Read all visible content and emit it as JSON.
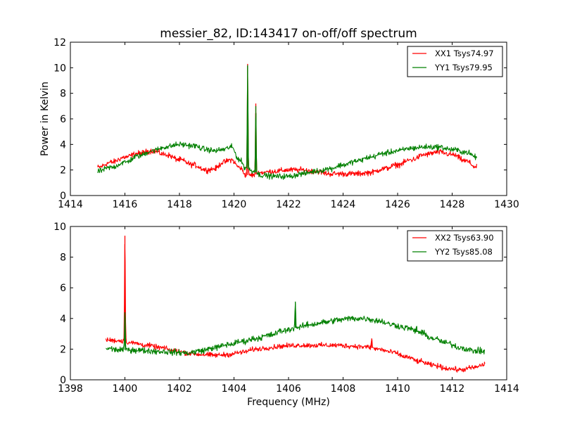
{
  "figure": {
    "title": "messier_82, ID:143417 on-off/off spectrum"
  },
  "colors": {
    "xx": "#ff0000",
    "yy": "#008000",
    "axes": "#000000",
    "background": "#ffffff"
  },
  "chart_data": [
    {
      "type": "line",
      "title": "messier_82, ID:143417 on-off/off spectrum",
      "xlabel": "",
      "ylabel": "Power in Kelvin",
      "xlim": [
        1414,
        1430
      ],
      "ylim": [
        0,
        12
      ],
      "xticks": [
        "1414",
        "1416",
        "1418",
        "1420",
        "1422",
        "1424",
        "1426",
        "1428",
        "1430"
      ],
      "yticks": [
        "0",
        "2",
        "4",
        "6",
        "8",
        "10",
        "12"
      ],
      "grid": false,
      "legend_position": "top-right",
      "x_range": [
        1415.0,
        1428.9
      ],
      "series": [
        {
          "name": "XX1 Tsys74.97",
          "color": "#ff0000",
          "x": [
            1415.0,
            1415.5,
            1416.0,
            1416.5,
            1417.0,
            1417.5,
            1418.0,
            1418.5,
            1419.0,
            1419.3,
            1419.6,
            1419.9,
            1420.2,
            1420.45,
            1420.7,
            1421.0,
            1421.5,
            1422.0,
            1422.5,
            1423.0,
            1423.5,
            1424.0,
            1424.5,
            1425.0,
            1425.5,
            1426.0,
            1426.5,
            1427.0,
            1427.5,
            1428.0,
            1428.5,
            1428.9
          ],
          "y": [
            2.2,
            2.6,
            3.0,
            3.3,
            3.5,
            3.2,
            2.8,
            2.4,
            2.0,
            2.1,
            2.6,
            2.8,
            2.2,
            1.6,
            1.6,
            1.8,
            1.9,
            2.0,
            2.0,
            1.9,
            1.7,
            1.7,
            1.7,
            1.8,
            2.1,
            2.4,
            2.8,
            3.2,
            3.4,
            3.2,
            2.7,
            2.2
          ],
          "noise": 0.12,
          "peaks": [
            {
              "x": 1420.5,
              "y": 10.3
            },
            {
              "x": 1420.8,
              "y": 7.2
            }
          ]
        },
        {
          "name": "YY1 Tsys79.95",
          "color": "#008000",
          "x": [
            1415.0,
            1415.5,
            1416.0,
            1416.5,
            1417.0,
            1417.5,
            1418.0,
            1418.5,
            1419.0,
            1419.3,
            1419.6,
            1419.9,
            1420.2,
            1420.45,
            1420.7,
            1421.0,
            1421.5,
            1422.0,
            1422.5,
            1423.0,
            1423.5,
            1424.0,
            1424.5,
            1425.0,
            1425.5,
            1426.0,
            1426.5,
            1427.0,
            1427.5,
            1428.0,
            1428.5,
            1428.9
          ],
          "y": [
            1.9,
            2.2,
            2.6,
            3.1,
            3.5,
            3.8,
            4.0,
            3.9,
            3.6,
            3.5,
            3.6,
            3.8,
            2.8,
            2.1,
            1.9,
            1.6,
            1.5,
            1.5,
            1.7,
            1.9,
            2.1,
            2.4,
            2.7,
            3.0,
            3.3,
            3.5,
            3.7,
            3.8,
            3.8,
            3.6,
            3.4,
            3.0
          ],
          "noise": 0.12,
          "peaks": [
            {
              "x": 1420.5,
              "y": 10.2
            },
            {
              "x": 1420.8,
              "y": 7.0
            }
          ]
        }
      ]
    },
    {
      "type": "line",
      "title": "",
      "xlabel": "Frequency (MHz)",
      "ylabel": "",
      "xlim": [
        1398,
        1414
      ],
      "ylim": [
        0,
        10
      ],
      "xticks": [
        "1398",
        "1400",
        "1402",
        "1404",
        "1406",
        "1408",
        "1410",
        "1412",
        "1414"
      ],
      "yticks": [
        "0",
        "2",
        "4",
        "6",
        "8",
        "10"
      ],
      "grid": false,
      "legend_position": "top-right",
      "x_range": [
        1399.3,
        1413.2
      ],
      "series": [
        {
          "name": "XX2 Tsys63.90",
          "color": "#ff0000",
          "x": [
            1399.3,
            1399.8,
            1400.3,
            1400.8,
            1401.3,
            1401.8,
            1402.3,
            1402.8,
            1403.3,
            1403.8,
            1404.3,
            1404.8,
            1405.3,
            1405.8,
            1406.3,
            1406.8,
            1407.3,
            1407.8,
            1408.3,
            1408.8,
            1409.3,
            1409.8,
            1410.3,
            1410.8,
            1411.3,
            1411.8,
            1412.3,
            1412.8,
            1413.2
          ],
          "y": [
            2.6,
            2.55,
            2.4,
            2.25,
            2.1,
            1.9,
            1.75,
            1.65,
            1.6,
            1.65,
            1.8,
            2.0,
            2.1,
            2.2,
            2.25,
            2.25,
            2.25,
            2.25,
            2.2,
            2.15,
            2.0,
            1.8,
            1.5,
            1.2,
            0.95,
            0.75,
            0.65,
            0.8,
            1.0
          ],
          "noise": 0.09,
          "peaks": [
            {
              "x": 1400.0,
              "y": 9.4
            },
            {
              "x": 1409.05,
              "y": 2.7
            }
          ]
        },
        {
          "name": "YY2 Tsys85.08",
          "color": "#008000",
          "x": [
            1399.3,
            1399.8,
            1400.3,
            1400.8,
            1401.3,
            1401.8,
            1402.3,
            1402.8,
            1403.3,
            1403.8,
            1404.3,
            1404.8,
            1405.3,
            1405.8,
            1406.3,
            1406.8,
            1407.3,
            1407.8,
            1408.3,
            1408.8,
            1409.3,
            1409.8,
            1410.3,
            1410.8,
            1411.3,
            1411.8,
            1412.3,
            1412.8,
            1413.2
          ],
          "y": [
            2.05,
            1.95,
            1.95,
            1.9,
            1.85,
            1.8,
            1.75,
            1.9,
            2.1,
            2.3,
            2.5,
            2.7,
            2.9,
            3.2,
            3.4,
            3.6,
            3.75,
            3.9,
            4.0,
            4.0,
            3.85,
            3.6,
            3.4,
            3.1,
            2.7,
            2.4,
            2.1,
            1.9,
            1.85
          ],
          "noise": 0.11,
          "peaks": [
            {
              "x": 1400.0,
              "y": 4.4
            },
            {
              "x": 1406.25,
              "y": 5.1
            },
            {
              "x": 1410.7,
              "y": 3.5
            }
          ]
        }
      ]
    }
  ]
}
